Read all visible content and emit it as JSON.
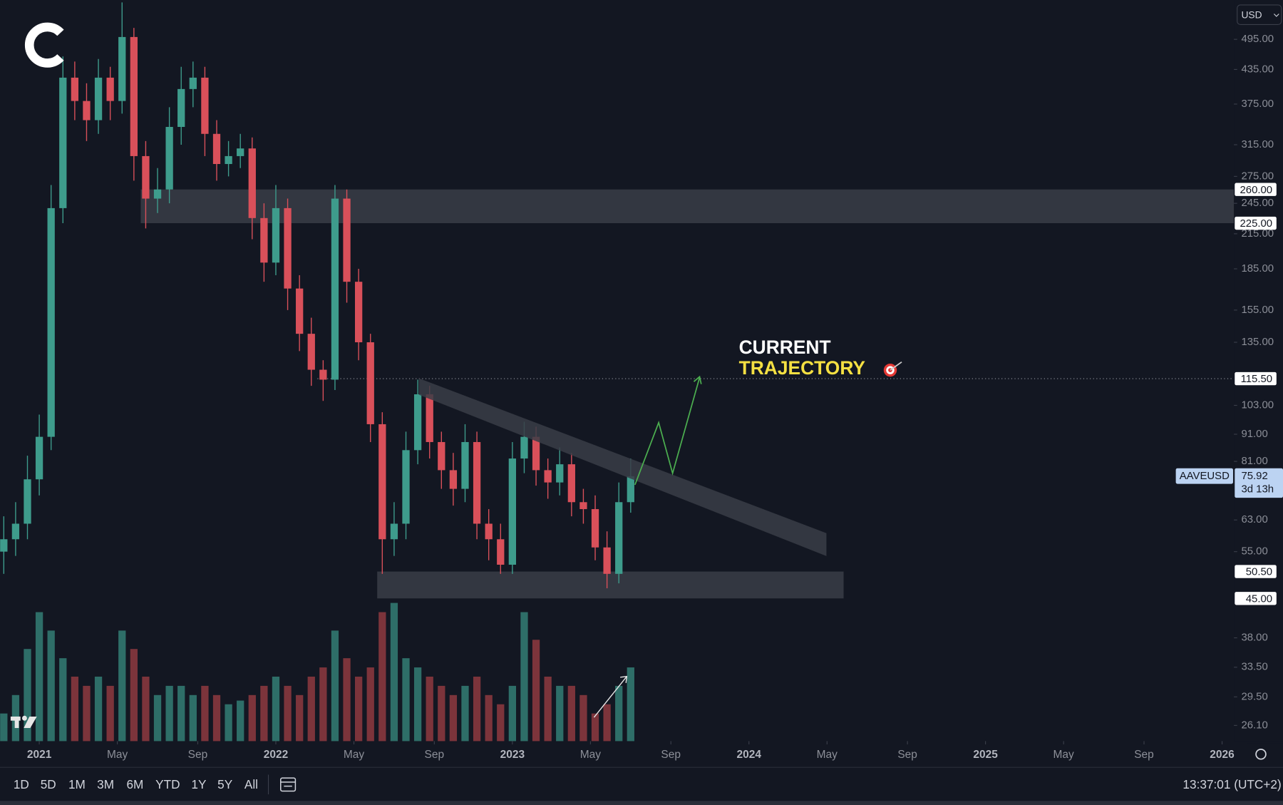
{
  "chart_data": {
    "type": "candlestick",
    "symbol": "AAVEUSD",
    "currency": "USD",
    "log_scale": true,
    "grid": false,
    "up_color": "#3e9c8c",
    "down_color": "#d9505a",
    "volume_up_color": "#2e6e68",
    "volume_down_color": "#7c343b",
    "x": [
      2020.85,
      2020.9,
      2020.95,
      2021.0,
      2021.05,
      2021.1,
      2021.15,
      2021.2,
      2021.25,
      2021.3,
      2021.35,
      2021.4,
      2021.45,
      2021.5,
      2021.55,
      2021.6,
      2021.65,
      2021.7,
      2021.75,
      2021.8,
      2021.85,
      2021.9,
      2021.95,
      2022.0,
      2022.05,
      2022.1,
      2022.15,
      2022.2,
      2022.25,
      2022.3,
      2022.35,
      2022.4,
      2022.45,
      2022.5,
      2022.55,
      2022.6,
      2022.65,
      2022.7,
      2022.75,
      2022.8,
      2022.85,
      2022.9,
      2022.95,
      2023.0,
      2023.05,
      2023.1,
      2023.15,
      2023.2,
      2023.25,
      2023.3,
      2023.35,
      2023.4,
      2023.45,
      2023.5
    ],
    "open": [
      55,
      58,
      62,
      75,
      90,
      240,
      420,
      380,
      350,
      420,
      380,
      500,
      300,
      250,
      260,
      340,
      400,
      420,
      330,
      290,
      300,
      310,
      230,
      190,
      240,
      170,
      140,
      120,
      115,
      250,
      175,
      135,
      95,
      58,
      62,
      85,
      108,
      88,
      78,
      72,
      88,
      62,
      58,
      52,
      82,
      90,
      78,
      74,
      80,
      68,
      66,
      56,
      50,
      68
    ],
    "high": [
      64,
      68,
      83,
      99,
      265,
      460,
      450,
      410,
      455,
      440,
      580,
      520,
      320,
      285,
      370,
      440,
      450,
      440,
      350,
      320,
      330,
      325,
      245,
      265,
      250,
      180,
      150,
      125,
      265,
      260,
      185,
      140,
      100,
      68,
      92,
      115,
      112,
      92,
      84,
      95,
      92,
      66,
      62,
      88,
      96,
      94,
      82,
      86,
      84,
      72,
      70,
      60,
      74,
      82
    ],
    "low": [
      50,
      54,
      58,
      70,
      85,
      225,
      350,
      320,
      330,
      350,
      360,
      270,
      220,
      235,
      245,
      315,
      370,
      300,
      270,
      275,
      285,
      210,
      175,
      180,
      155,
      130,
      112,
      105,
      110,
      160,
      125,
      88,
      50,
      54,
      58,
      80,
      82,
      72,
      67,
      68,
      58,
      53,
      50,
      50,
      77,
      73,
      69,
      70,
      64,
      62,
      53,
      47,
      48,
      65
    ],
    "close": [
      58,
      62,
      75,
      90,
      240,
      420,
      380,
      350,
      420,
      380,
      500,
      300,
      250,
      260,
      340,
      400,
      420,
      330,
      290,
      300,
      310,
      230,
      190,
      240,
      170,
      140,
      120,
      115,
      250,
      175,
      135,
      95,
      58,
      62,
      85,
      108,
      88,
      78,
      72,
      88,
      62,
      58,
      52,
      82,
      90,
      78,
      74,
      80,
      68,
      66,
      56,
      50,
      68,
      76
    ],
    "volume": [
      15,
      25,
      50,
      70,
      60,
      45,
      35,
      30,
      35,
      30,
      60,
      50,
      35,
      25,
      30,
      30,
      25,
      30,
      25,
      20,
      22,
      25,
      30,
      35,
      30,
      25,
      35,
      40,
      60,
      45,
      35,
      40,
      70,
      75,
      45,
      40,
      35,
      30,
      25,
      30,
      35,
      25,
      20,
      30,
      70,
      55,
      35,
      30,
      30,
      25,
      15,
      20,
      30,
      40
    ],
    "volume_lim": [
      0,
      100
    ],
    "xlim": [
      2020.834,
      2026.05
    ],
    "xticks": [
      2021,
      {
        "value": 2021.33,
        "label": "May"
      },
      {
        "value": 2021.67,
        "label": "Sep"
      },
      2022,
      {
        "value": 2022.33,
        "label": "May"
      },
      {
        "value": 2022.67,
        "label": "Sep"
      },
      2023,
      {
        "value": 2023.33,
        "label": "May"
      },
      {
        "value": 2023.67,
        "label": "Sep"
      },
      2024,
      {
        "value": 2024.33,
        "label": "May"
      },
      {
        "value": 2024.67,
        "label": "Sep"
      },
      2025,
      {
        "value": 2025.33,
        "label": "May"
      },
      {
        "value": 2025.67,
        "label": "Sep"
      },
      2026
    ],
    "ylim": [
      24.4,
      586
    ],
    "yticks": [
      {
        "value": 495,
        "label": "495.00"
      },
      {
        "value": 435,
        "label": "435.00"
      },
      {
        "value": 375,
        "label": "375.00"
      },
      {
        "value": 315,
        "label": "315.00"
      },
      {
        "value": 275,
        "label": "275.00"
      },
      {
        "value": 245,
        "label": "245.00"
      },
      {
        "value": 215,
        "label": "215.00"
      },
      {
        "value": 185,
        "label": "185.00"
      },
      {
        "value": 155,
        "label": "155.00"
      },
      {
        "value": 135,
        "label": "135.00"
      },
      {
        "value": 103,
        "label": "103.00"
      },
      {
        "value": 91,
        "label": "91.00"
      },
      {
        "value": 81,
        "label": "81.00"
      },
      {
        "value": 63,
        "label": "63.00"
      },
      {
        "value": 55,
        "label": "55.00"
      },
      {
        "value": 38,
        "label": "38.00"
      },
      {
        "value": 33.5,
        "label": "33.50"
      },
      {
        "value": 29.5,
        "label": "29.50"
      },
      {
        "value": 26.1,
        "label": "26.10"
      }
    ],
    "price_lines": [
      {
        "value": 260,
        "label": "260.00"
      },
      {
        "value": 225,
        "label": "225.00"
      },
      {
        "value": 115.5,
        "label": "115.50"
      },
      {
        "value": 50.5,
        "label": "50.50"
      },
      {
        "value": 45,
        "label": "45.00"
      }
    ],
    "last_price": {
      "value": 75.92,
      "label": "75.92"
    },
    "countdown": "3d 13h",
    "annotation": [
      "CURRENT",
      "TRAJECTORY"
    ]
  },
  "toolbar": {
    "ranges": [
      "1D",
      "5D",
      "1M",
      "3M",
      "6M",
      "YTD",
      "1Y",
      "5Y",
      "All"
    ],
    "clock": "13:37:01 (UTC+2)"
  }
}
